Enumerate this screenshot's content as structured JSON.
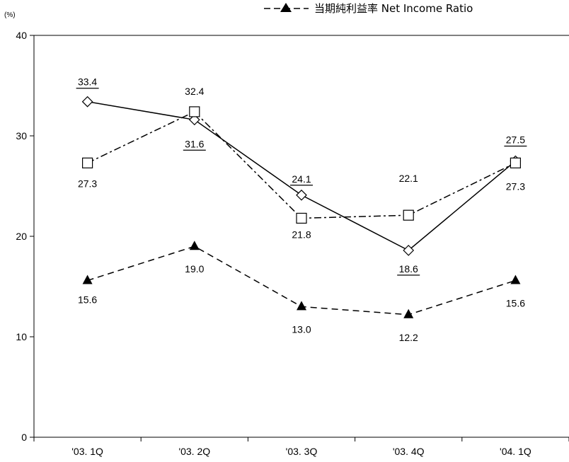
{
  "chart_data": {
    "type": "line",
    "categories": [
      "'03. 1Q",
      "'03. 2Q",
      "'03. 3Q",
      "'03. 4Q",
      "'04. 1Q"
    ],
    "y_unit": "(%)",
    "ylim": [
      0,
      40
    ],
    "yticks": [
      "0",
      "10",
      "20",
      "30",
      "40"
    ],
    "grid": false,
    "legend_position": "top-right",
    "series": [
      {
        "marker": "diamond",
        "line": "solid",
        "values": [
          33.4,
          31.6,
          24.1,
          18.6,
          27.5
        ],
        "labels": [
          "33.4",
          "31.6",
          "24.1",
          "18.6",
          "27.5"
        ],
        "label_underlined": true
      },
      {
        "marker": "square",
        "line": "dash-dot",
        "values": [
          27.3,
          32.4,
          21.8,
          22.1,
          27.3
        ],
        "labels": [
          "27.3",
          "32.4",
          "21.8",
          "22.1",
          "27.3"
        ],
        "label_underlined": false
      },
      {
        "name": "当期純利益率 Net Income Ratio",
        "marker": "triangle",
        "line": "dashed",
        "values": [
          15.6,
          19.0,
          13.0,
          12.2,
          15.6
        ],
        "labels": [
          "15.6",
          "19.0",
          "13.0",
          "12.2",
          "15.6"
        ],
        "label_underlined": false
      }
    ]
  }
}
